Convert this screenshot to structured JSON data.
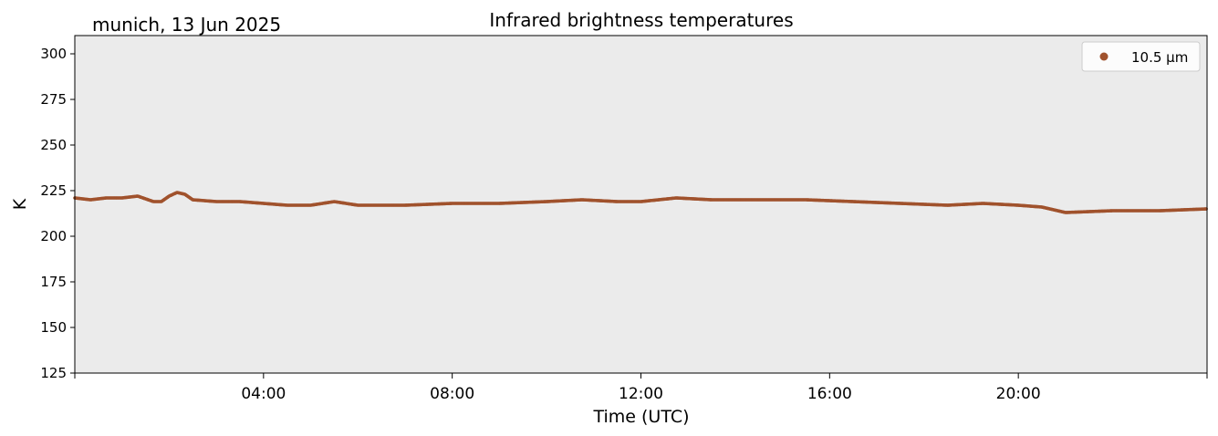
{
  "chart_data": {
    "type": "scatter",
    "title": "Infrared brightness temperatures",
    "location_date": "munich, 13 Jun 2025",
    "xlabel": "Time (UTC)",
    "ylabel": "K",
    "xlim": [
      "00:00",
      "24:00"
    ],
    "ylim": [
      125,
      310
    ],
    "yticks": [
      125,
      150,
      175,
      200,
      225,
      250,
      275,
      300
    ],
    "xticks": [
      "04:00",
      "08:00",
      "12:00",
      "16:00",
      "20:00"
    ],
    "grid": false,
    "legend_position": "top-right",
    "plot_background": "#ebebeb",
    "series": [
      {
        "name": "10.5 µm",
        "color": "#a0522d",
        "x": [
          "00:00",
          "00:20",
          "00:40",
          "01:00",
          "01:20",
          "01:40",
          "01:50",
          "02:00",
          "02:10",
          "02:20",
          "02:30",
          "03:00",
          "03:30",
          "04:00",
          "04:30",
          "05:00",
          "05:30",
          "06:00",
          "06:30",
          "07:00",
          "08:00",
          "09:00",
          "10:00",
          "10:45",
          "11:30",
          "12:00",
          "12:45",
          "13:30",
          "14:30",
          "15:30",
          "16:30",
          "17:30",
          "18:30",
          "19:15",
          "20:00",
          "20:30",
          "21:00",
          "22:00",
          "23:00",
          "24:00"
        ],
        "y": [
          221,
          220,
          221,
          221,
          222,
          219,
          219,
          222,
          224,
          223,
          220,
          219,
          219,
          218,
          217,
          217,
          219,
          217,
          217,
          217,
          218,
          218,
          219,
          220,
          219,
          219,
          221,
          220,
          220,
          220,
          219,
          218,
          217,
          218,
          217,
          216,
          213,
          214,
          214,
          215
        ]
      }
    ]
  }
}
